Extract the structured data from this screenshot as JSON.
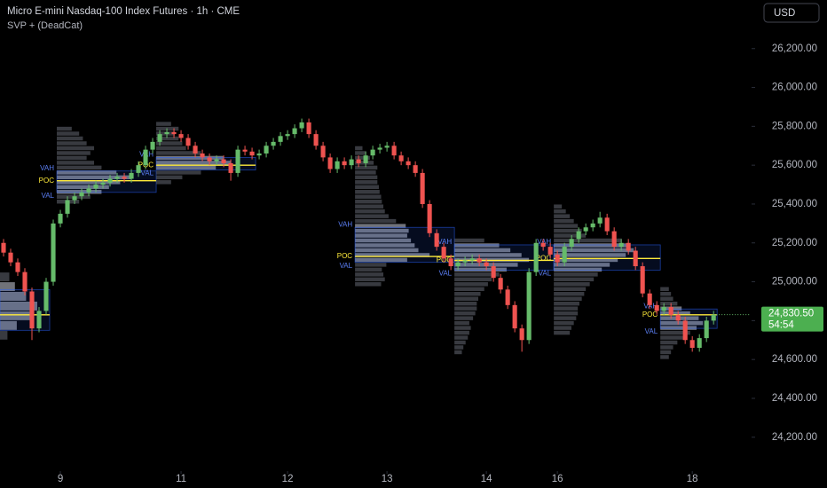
{
  "chart_data": {
    "type": "candlestick",
    "title": "Micro E-mini Nasdaq-100 Index Futures · 1h · CME",
    "subtitle": "SVP + (DeadCat)",
    "currency": "USD",
    "up_color": "#66bb6a",
    "down_color": "#ef5350",
    "ylim": [
      24030,
      26450
    ],
    "yticks": [
      {
        "value": 24200,
        "label": "24,200.00"
      },
      {
        "value": 24400,
        "label": "24,400.00"
      },
      {
        "value": 24600,
        "label": "24,600.00"
      },
      {
        "value": 24800,
        "label": "24,800.00"
      },
      {
        "value": 25000,
        "label": "25,000.00"
      },
      {
        "value": 25200,
        "label": "25,200.00"
      },
      {
        "value": 25400,
        "label": "25,400.00"
      },
      {
        "value": 25600,
        "label": "25,600.00"
      },
      {
        "value": 25800,
        "label": "25,800.00"
      },
      {
        "value": 26000,
        "label": "26,000.00"
      },
      {
        "value": 26200,
        "label": "26,200.00"
      }
    ],
    "xlim": [
      -0.5,
      105.1
    ],
    "xticks": [
      {
        "value": 8,
        "label": "9"
      },
      {
        "value": 25,
        "label": "11"
      },
      {
        "value": 40,
        "label": "12"
      },
      {
        "value": 54,
        "label": "13"
      },
      {
        "value": 68,
        "label": "14"
      },
      {
        "value": 78,
        "label": "16"
      },
      {
        "value": 97,
        "label": "18"
      }
    ],
    "open": [
      25200,
      25150,
      25100,
      25050,
      24950,
      24760,
      24850,
      25000,
      25300,
      25350,
      25420,
      25440,
      25460,
      25480,
      25500,
      25510,
      25530,
      25540,
      25530,
      25560,
      25600,
      25680,
      25720,
      25760,
      25770,
      25760,
      25740,
      25700,
      25660,
      25640,
      25620,
      25630,
      25610,
      25560,
      25680,
      25670,
      25650,
      25660,
      25700,
      25720,
      25750,
      25760,
      25790,
      25820,
      25760,
      25700,
      25640,
      25580,
      25620,
      25600,
      25630,
      25610,
      25650,
      25680,
      25690,
      25700,
      25650,
      25620,
      25600,
      25560,
      25400,
      25250,
      25180,
      25120,
      25080,
      25100,
      25110,
      25120,
      25100,
      25080,
      25020,
      24960,
      24880,
      24760,
      24700,
      25050,
      25200,
      25180,
      25140,
      25100,
      25180,
      25220,
      25260,
      25280,
      25300,
      25330,
      25260,
      25180,
      25200,
      25160,
      25080,
      24940,
      24880,
      24850,
      24870,
      24830,
      24800,
      24700,
      24660,
      24710,
      24800
    ],
    "high": [
      25220,
      25170,
      25120,
      25070,
      24970,
      24870,
      25020,
      25320,
      25370,
      25440,
      25460,
      25480,
      25500,
      25520,
      25530,
      25550,
      25560,
      25560,
      25580,
      25620,
      25700,
      25740,
      25780,
      25790,
      25790,
      25780,
      25760,
      25720,
      25680,
      25660,
      25650,
      25650,
      25630,
      25700,
      25700,
      25690,
      25680,
      25720,
      25740,
      25770,
      25780,
      25810,
      25840,
      25840,
      25780,
      25720,
      25660,
      25640,
      25640,
      25650,
      25650,
      25670,
      25700,
      25710,
      25720,
      25720,
      25670,
      25640,
      25620,
      25580,
      25420,
      25270,
      25200,
      25140,
      25120,
      25130,
      25140,
      25140,
      25120,
      25100,
      25040,
      24980,
      24900,
      24780,
      25070,
      25220,
      25220,
      25200,
      25160,
      25200,
      25240,
      25280,
      25300,
      25320,
      25360,
      25350,
      25280,
      25220,
      25220,
      25180,
      25100,
      24960,
      24900,
      24890,
      24890,
      24850,
      24820,
      24720,
      24730,
      24820,
      24850
    ],
    "low": [
      25130,
      25080,
      25030,
      24930,
      24700,
      24740,
      24830,
      24980,
      25280,
      25330,
      25400,
      25420,
      25440,
      25460,
      25480,
      25490,
      25510,
      25510,
      25510,
      25540,
      25580,
      25660,
      25700,
      25740,
      25740,
      25720,
      25680,
      25640,
      25620,
      25600,
      25600,
      25590,
      25520,
      25540,
      25650,
      25630,
      25630,
      25640,
      25680,
      25700,
      25730,
      25740,
      25770,
      25740,
      25680,
      25620,
      25560,
      25560,
      25580,
      25580,
      25590,
      25590,
      25630,
      25660,
      25670,
      25630,
      25600,
      25580,
      25540,
      25380,
      25230,
      25160,
      25100,
      25060,
      25060,
      25080,
      25090,
      25080,
      25060,
      25000,
      24940,
      24860,
      24740,
      24640,
      24680,
      25030,
      25160,
      25120,
      25080,
      25080,
      25160,
      25200,
      25240,
      25260,
      25280,
      25240,
      25160,
      25160,
      25140,
      25060,
      24920,
      24860,
      24830,
      24830,
      24810,
      24780,
      24680,
      24640,
      24640,
      24690,
      24780
    ],
    "close": [
      25150,
      25100,
      25050,
      24950,
      24760,
      24850,
      25000,
      25300,
      25350,
      25420,
      25440,
      25460,
      25480,
      25500,
      25510,
      25530,
      25540,
      25530,
      25560,
      25600,
      25680,
      25720,
      25760,
      25770,
      25760,
      25740,
      25700,
      25660,
      25640,
      25620,
      25630,
      25610,
      25560,
      25680,
      25670,
      25650,
      25660,
      25700,
      25720,
      25750,
      25760,
      25790,
      25820,
      25760,
      25700,
      25640,
      25580,
      25620,
      25600,
      25630,
      25610,
      25650,
      25680,
      25690,
      25700,
      25650,
      25620,
      25600,
      25560,
      25400,
      25250,
      25180,
      25120,
      25080,
      25100,
      25110,
      25120,
      25100,
      25080,
      25020,
      24960,
      24880,
      24760,
      24700,
      25050,
      25200,
      25180,
      25140,
      25100,
      25180,
      25220,
      25260,
      25280,
      25300,
      25330,
      25260,
      25180,
      25200,
      25160,
      25080,
      24940,
      24880,
      24850,
      24870,
      24830,
      24800,
      24700,
      24660,
      24710,
      24800,
      24830.5
    ],
    "profile_labels": {
      "vah": "VAH",
      "poc": "POC",
      "val": "VAL"
    },
    "profiles": [
      {
        "start": 0,
        "end": 6,
        "low": 24700,
        "step": 50,
        "volumes": [
          20,
          45,
          90,
          100,
          70,
          40,
          25
        ],
        "vah": 24960,
        "poc": 24830,
        "val": 24750
      },
      {
        "start": 8,
        "end": 21,
        "low": 25400,
        "step": 25,
        "volumes": [
          30,
          45,
          60,
          70,
          85,
          100,
          80,
          60,
          50,
          40,
          45,
          50,
          40,
          35,
          30,
          20
        ],
        "vah": 25570,
        "poc": 25520,
        "val": 25460
      },
      {
        "start": 22,
        "end": 35,
        "low": 25500,
        "step": 25,
        "volumes": [
          20,
          35,
          60,
          80,
          100,
          90,
          60,
          40,
          35,
          30,
          25,
          30,
          20
        ],
        "vah": 25640,
        "poc": 25600,
        "val": 25575
      },
      {
        "start": 50,
        "end": 63,
        "low": 24975,
        "step": 25,
        "volumes": [
          35,
          40,
          38,
          36,
          42,
          70,
          100,
          85,
          80,
          75,
          70,
          72,
          68,
          55,
          45,
          40,
          38,
          36,
          35,
          33,
          32,
          30,
          30,
          28,
          30,
          25,
          20,
          15,
          10
        ],
        "vah": 25280,
        "poc": 25130,
        "val": 25100
      },
      {
        "start": 64,
        "end": 77,
        "low": 24625,
        "step": 25,
        "volumes": [
          10,
          12,
          15,
          18,
          20,
          22,
          20,
          25,
          28,
          30,
          30,
          32,
          35,
          40,
          45,
          50,
          60,
          70,
          85,
          100,
          90,
          75,
          60,
          40
        ],
        "vah": 25190,
        "poc": 25110,
        "val": 25060
      },
      {
        "start": 78,
        "end": 92,
        "low": 24725,
        "step": 25,
        "volumes": [
          20,
          22,
          25,
          28,
          30,
          30,
          32,
          35,
          38,
          40,
          45,
          50,
          55,
          60,
          70,
          80,
          90,
          100,
          95,
          85,
          40,
          35,
          30,
          25,
          20,
          15,
          10
        ],
        "vah": 25190,
        "poc": 25120,
        "val": 25060
      },
      {
        "start": 93,
        "end": 100,
        "low": 24600,
        "step": 25,
        "volumes": [
          20,
          25,
          30,
          40,
          55,
          70,
          85,
          100,
          90,
          70,
          50,
          40,
          30,
          25,
          20
        ],
        "vah": 24860,
        "poc": 24830,
        "val": 24760
      }
    ],
    "last_price": {
      "value": 24830.5,
      "label": "24,830.50",
      "countdown": "54:54"
    }
  }
}
